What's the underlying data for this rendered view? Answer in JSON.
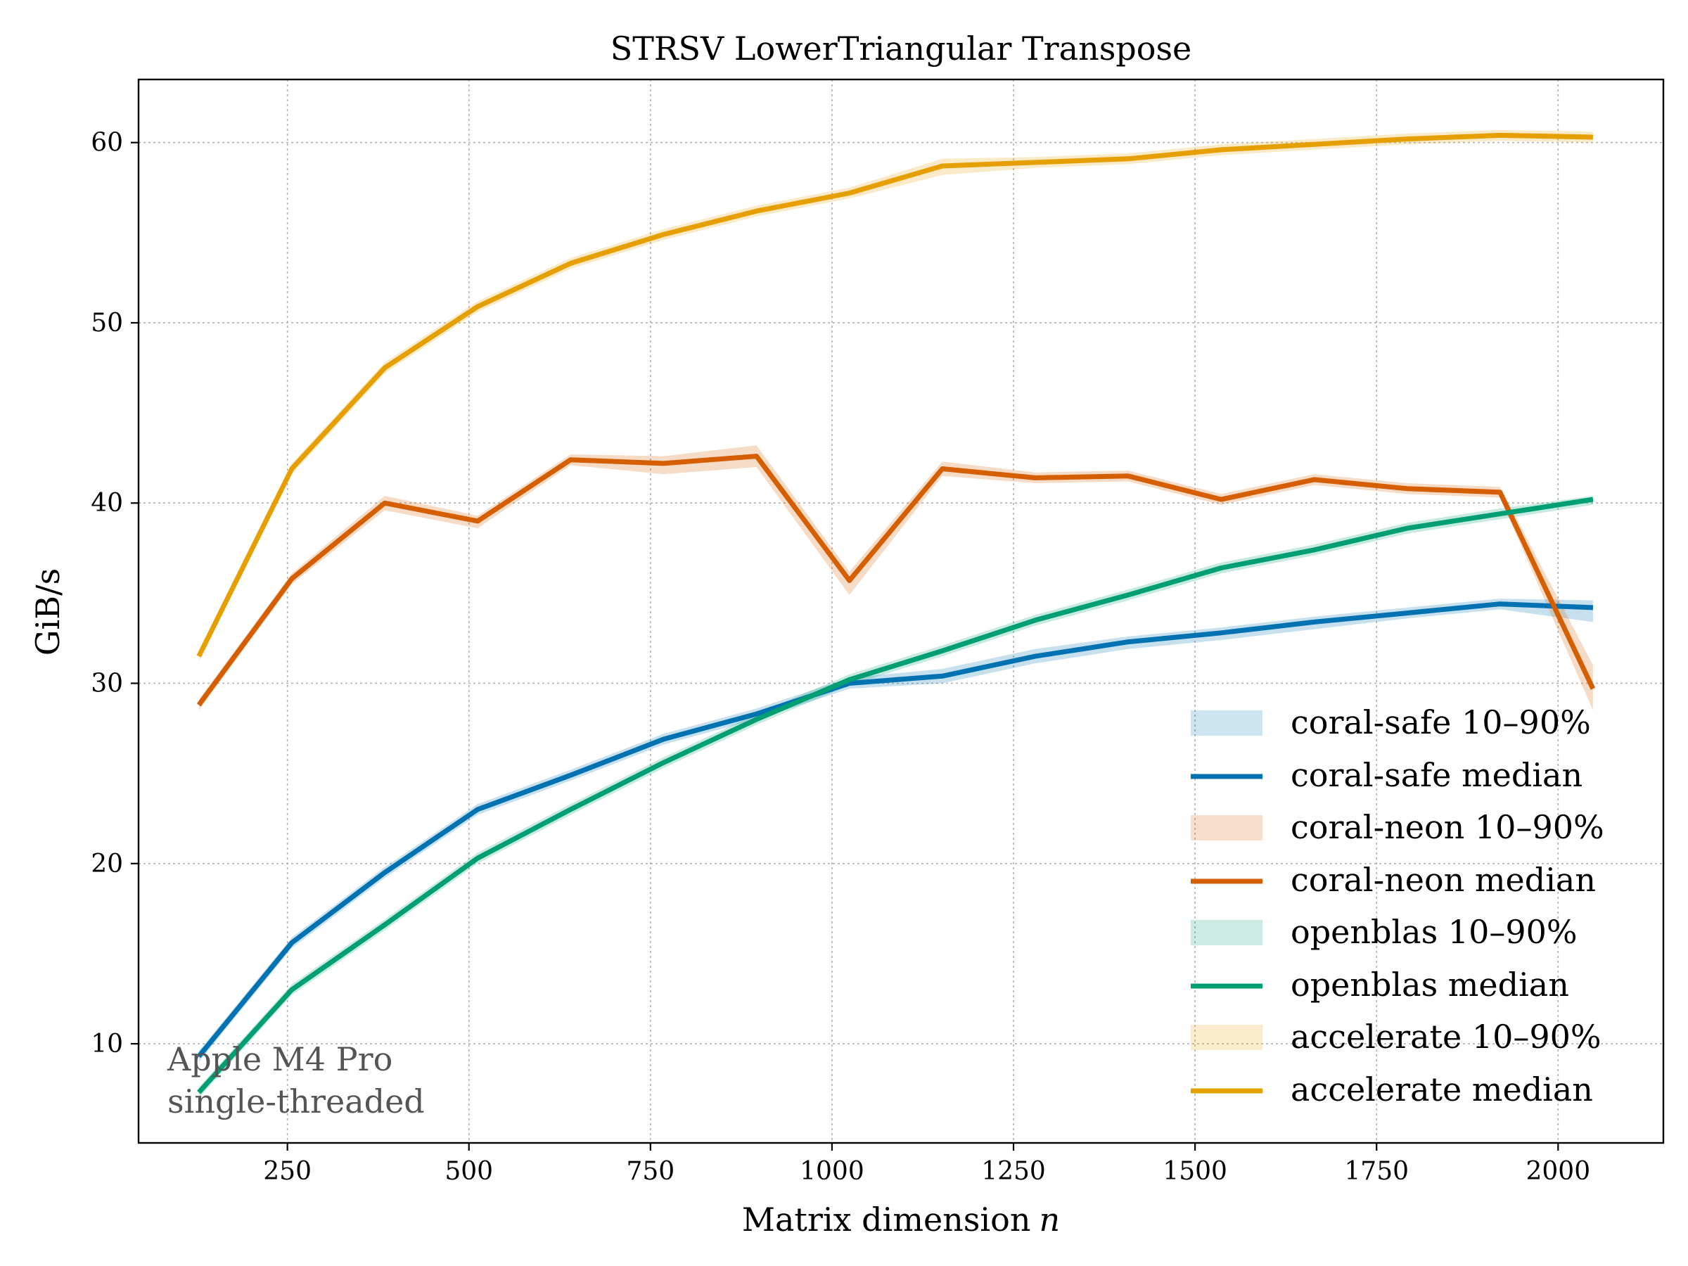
{
  "chart_data": {
    "type": "line",
    "title": "STRSV  LowerTriangular  Transpose",
    "xlabel": "Matrix dimension",
    "xlabel_var": "n",
    "ylabel": "GiB/s",
    "xlim": [
      45,
      2145
    ],
    "ylim": [
      4.5,
      63.5
    ],
    "xticks": [
      250,
      500,
      750,
      1000,
      1250,
      1500,
      1750,
      2000
    ],
    "yticks": [
      10,
      20,
      30,
      40,
      50,
      60
    ],
    "grid": true,
    "legend_position": "lower-right",
    "annotation": [
      "Apple M4 Pro",
      "single-threaded"
    ],
    "series": [
      {
        "name": "coral-safe",
        "median_label": "coral-safe median",
        "band_label": "coral-safe 10–90%",
        "color": "#0072b2",
        "x": [
          128,
          256,
          384,
          512,
          640,
          768,
          896,
          1024,
          1152,
          1280,
          1408,
          1536,
          1664,
          1792,
          1920,
          2048
        ],
        "median": [
          9.3,
          15.6,
          19.5,
          23.0,
          24.9,
          26.9,
          28.3,
          30.0,
          30.4,
          31.5,
          32.3,
          32.8,
          33.4,
          33.9,
          34.4,
          34.2
        ],
        "p10": [
          9.0,
          15.3,
          19.2,
          22.7,
          24.6,
          26.6,
          28.0,
          29.7,
          30.0,
          31.1,
          31.9,
          32.4,
          33.0,
          33.6,
          34.1,
          33.4
        ],
        "p90": [
          9.6,
          15.9,
          19.8,
          23.3,
          25.2,
          27.2,
          28.6,
          30.3,
          30.8,
          31.9,
          32.6,
          33.1,
          33.7,
          34.2,
          34.7,
          34.6
        ]
      },
      {
        "name": "coral-neon",
        "median_label": "coral-neon median",
        "band_label": "coral-neon 10–90%",
        "color": "#d55e00",
        "x": [
          128,
          256,
          384,
          512,
          640,
          768,
          896,
          1024,
          1152,
          1280,
          1408,
          1536,
          1664,
          1792,
          1920,
          2048
        ],
        "median": [
          28.8,
          35.8,
          40.0,
          39.0,
          42.4,
          42.2,
          42.6,
          35.7,
          41.9,
          41.4,
          41.5,
          40.2,
          41.3,
          40.8,
          40.6,
          29.7
        ],
        "p10": [
          28.5,
          35.5,
          39.6,
          38.6,
          42.1,
          41.6,
          42.0,
          34.9,
          41.5,
          41.1,
          41.2,
          39.9,
          41.0,
          40.5,
          40.3,
          28.5
        ],
        "p90": [
          29.1,
          36.1,
          40.4,
          39.3,
          42.7,
          42.6,
          43.2,
          36.2,
          42.3,
          41.7,
          41.8,
          40.5,
          41.6,
          41.1,
          40.9,
          31.0
        ]
      },
      {
        "name": "openblas",
        "median_label": "openblas median",
        "band_label": "openblas 10–90%",
        "color": "#009e73",
        "x": [
          128,
          256,
          384,
          512,
          640,
          768,
          896,
          1024,
          1152,
          1280,
          1408,
          1536,
          1664,
          1792,
          1920,
          2048
        ],
        "median": [
          7.3,
          13.0,
          16.6,
          20.3,
          23.0,
          25.6,
          28.0,
          30.2,
          31.8,
          33.5,
          34.9,
          36.4,
          37.4,
          38.6,
          39.4,
          40.2
        ],
        "p10": [
          7.0,
          12.7,
          16.3,
          20.0,
          22.7,
          25.3,
          27.7,
          29.9,
          31.5,
          33.2,
          34.6,
          36.1,
          37.1,
          38.3,
          39.1,
          39.9
        ],
        "p90": [
          7.6,
          13.3,
          16.9,
          20.6,
          23.3,
          25.9,
          28.3,
          30.5,
          32.1,
          33.8,
          35.2,
          36.7,
          37.7,
          38.9,
          39.7,
          40.4
        ]
      },
      {
        "name": "accelerate",
        "median_label": "accelerate median",
        "band_label": "accelerate 10–90%",
        "color": "#e69f00",
        "x": [
          128,
          256,
          384,
          512,
          640,
          768,
          896,
          1024,
          1152,
          1280,
          1408,
          1536,
          1664,
          1792,
          1920,
          2048
        ],
        "median": [
          31.5,
          41.9,
          47.5,
          50.9,
          53.3,
          54.9,
          56.2,
          57.2,
          58.7,
          58.9,
          59.1,
          59.6,
          59.9,
          60.2,
          60.4,
          60.3
        ],
        "p10": [
          31.2,
          41.6,
          47.2,
          50.6,
          53.0,
          54.6,
          55.9,
          56.9,
          58.2,
          58.6,
          58.8,
          59.3,
          59.6,
          59.9,
          60.1,
          60.0
        ],
        "p90": [
          31.8,
          42.2,
          47.8,
          51.2,
          53.6,
          55.2,
          56.5,
          57.5,
          59.1,
          59.2,
          59.4,
          59.9,
          60.2,
          60.5,
          60.7,
          60.6
        ]
      }
    ]
  }
}
